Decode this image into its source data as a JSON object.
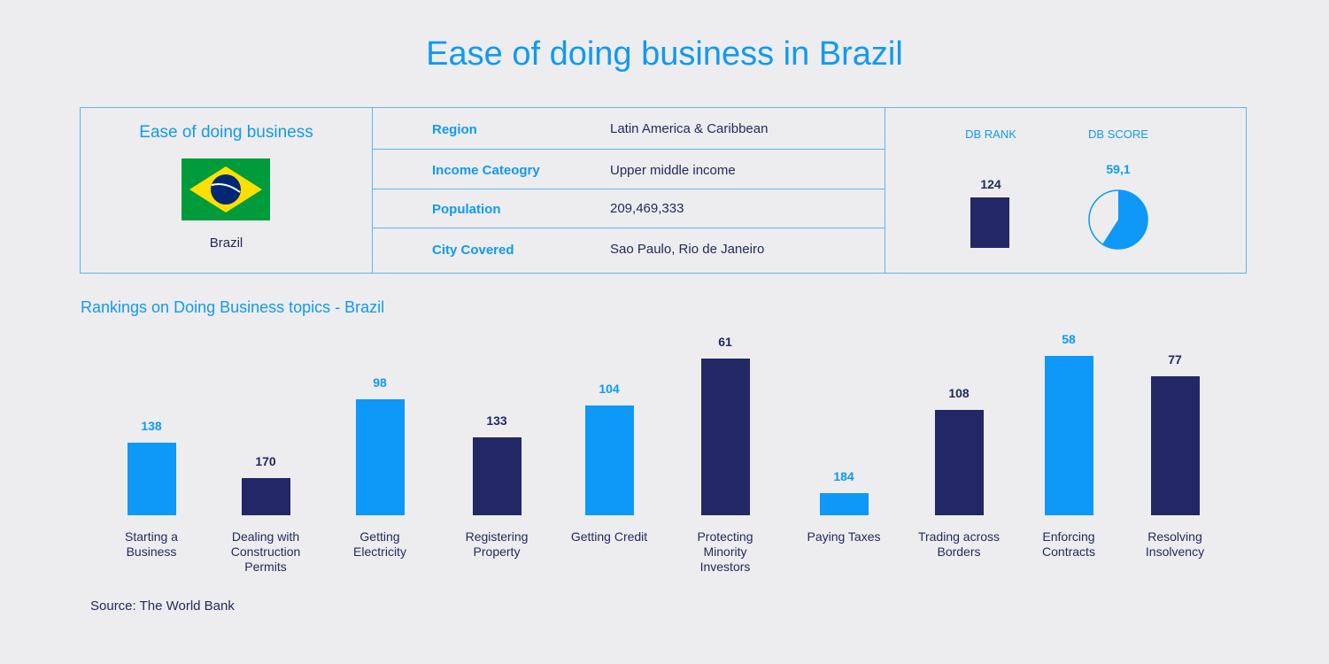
{
  "title": "Ease of doing business in Brazil",
  "info": {
    "heading": "Ease of doing business",
    "flag_icon": "brazil-flag",
    "country": "Brazil",
    "rows": [
      {
        "label": "Region",
        "value": "Latin America & Caribbean"
      },
      {
        "label": "Income Cateogry",
        "value": "Upper middle income"
      },
      {
        "label": "Population",
        "value": "209,469,333"
      },
      {
        "label": "City Covered",
        "value": "Sao Paulo, Rio de Janeiro"
      }
    ],
    "db_rank_label": "DB RANK",
    "db_rank": "124",
    "db_score_label": "DB SCORE",
    "db_score": "59,1",
    "db_score_value": 59.1
  },
  "colors": {
    "blue": "#0e98f8",
    "navy": "#212865"
  },
  "chart_data": {
    "type": "bar",
    "title": "Rankings on Doing Business topics - Brazil",
    "categories": [
      "Starting a Business",
      "Dealing with Construction Permits",
      "Getting Electricity",
      "Registering Property",
      "Getting Credit",
      "Protecting Minority Investors",
      "Paying Taxes",
      "Trading across Borders",
      "Enforcing Contracts",
      "Resolving Insolvency"
    ],
    "values": [
      138,
      170,
      98,
      133,
      104,
      61,
      184,
      108,
      58,
      77
    ],
    "labels": [
      "138",
      "170",
      "98",
      "133",
      "104",
      "61",
      "184",
      "108",
      "58",
      "77"
    ],
    "bar_colors": [
      "#0e98f8",
      "#212865",
      "#0e98f8",
      "#212865",
      "#0e98f8",
      "#212865",
      "#0e98f8",
      "#212865",
      "#0e98f8",
      "#212865"
    ],
    "grid": false
  },
  "source": "Source: The World Bank"
}
